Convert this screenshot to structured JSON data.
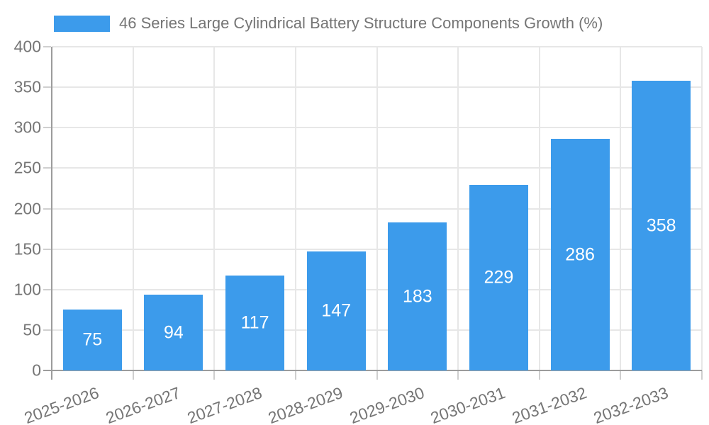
{
  "legend": {
    "label": "46 Series Large Cylindrical Battery Structure Components Growth (%)"
  },
  "chart_data": {
    "type": "bar",
    "title": "46 Series Large Cylindrical Battery Structure Components Growth (%)",
    "categories": [
      "2025-2026",
      "2026-2027",
      "2027-2028",
      "2028-2029",
      "2029-2030",
      "2030-2031",
      "2031-2032",
      "2032-2033"
    ],
    "values": [
      75,
      94,
      117,
      147,
      183,
      229,
      286,
      358
    ],
    "series": [
      {
        "name": "46 Series Large Cylindrical Battery Structure Components Growth (%)",
        "values": [
          75,
          94,
          117,
          147,
          183,
          229,
          286,
          358
        ]
      }
    ],
    "yticks": [
      0,
      50,
      100,
      150,
      200,
      250,
      300,
      350,
      400
    ],
    "ylim": [
      0,
      400
    ],
    "xlabel": "",
    "ylabel": "",
    "grid": "on",
    "legend_position": "top",
    "value_labels": "inside-center",
    "x_tick_rotation_deg": -20,
    "colors": {
      "bar": "#3C9BEB",
      "bar_label": "#FFFFFF",
      "text": "#757575",
      "axis": "#9C9C9C",
      "grid": "#E7E7E7",
      "tick": "#CFCFCF",
      "background": "#FFFFFF"
    }
  }
}
